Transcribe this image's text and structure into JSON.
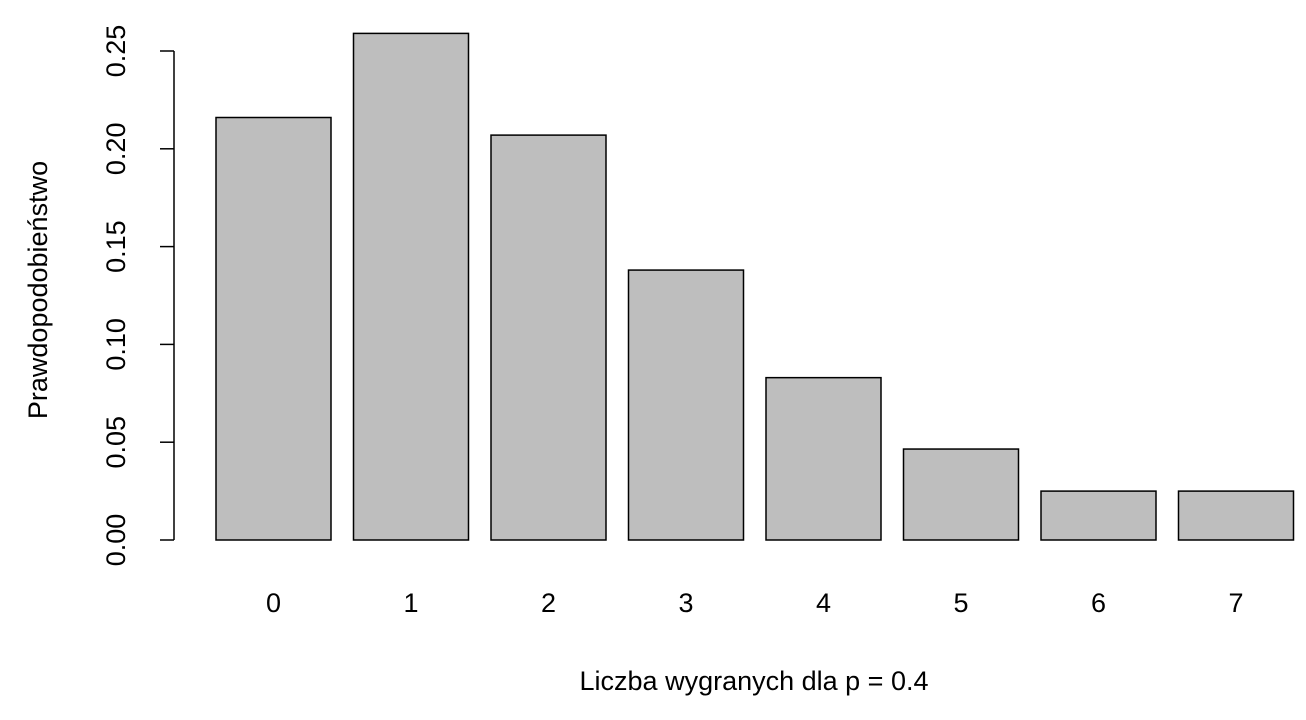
{
  "chart_data": {
    "type": "bar",
    "x_label": "Liczba wygranych dla p = 0.4",
    "y_label": "Prawdopodobieństwo",
    "categories": [
      "0",
      "1",
      "2",
      "3",
      "4",
      "5",
      "6",
      "7"
    ],
    "values": [
      0.216,
      0.259,
      0.207,
      0.138,
      0.083,
      0.0465,
      0.025,
      0.025
    ],
    "color": "#bebebe",
    "ylim": [
      0,
      0.25
    ],
    "yticks": [
      {
        "value": 0,
        "label": "0.00"
      },
      {
        "value": 0.05,
        "label": "0.05"
      },
      {
        "value": 0.1,
        "label": "0.10"
      },
      {
        "value": 0.15,
        "label": "0.15"
      },
      {
        "value": 0.2,
        "label": "0.20"
      },
      {
        "value": 0.25,
        "label": "0.25"
      }
    ],
    "grid": false
  }
}
